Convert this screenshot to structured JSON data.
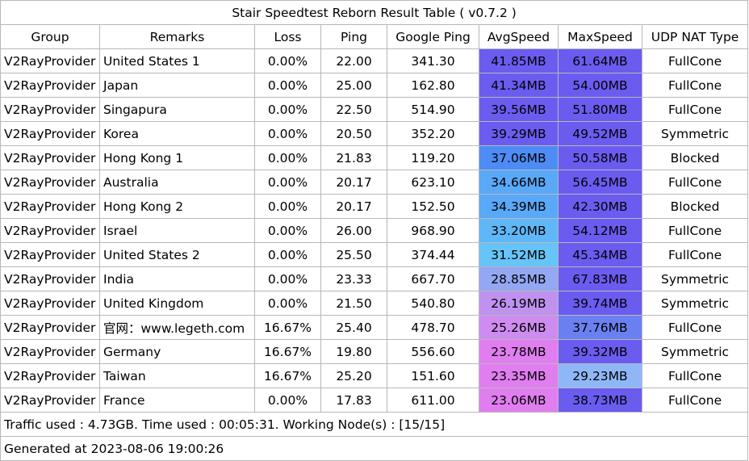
{
  "title": "Stair Speedtest Reborn Result Table ( v0.7.2 )",
  "headers": [
    "Group",
    "Remarks",
    "Loss",
    "Ping",
    "Google Ping",
    "AvgSpeed",
    "MaxSpeed",
    "UDP NAT Type"
  ],
  "rows": [
    {
      "group": "V2RayProvider",
      "remarks": "United States 1",
      "loss": "0.00%",
      "ping": "22.00",
      "gping": "341.30",
      "avg": "41.85MB",
      "max": "61.64MB",
      "nat": "FullCone",
      "avg_color": "#6b5cf0",
      "max_color": "#6b5cf0"
    },
    {
      "group": "V2RayProvider",
      "remarks": "Japan",
      "loss": "0.00%",
      "ping": "25.00",
      "gping": "162.80",
      "avg": "41.34MB",
      "max": "54.00MB",
      "nat": "FullCone",
      "avg_color": "#6b5cf0",
      "max_color": "#6b5cf0"
    },
    {
      "group": "V2RayProvider",
      "remarks": "Singapura",
      "loss": "0.00%",
      "ping": "22.50",
      "gping": "514.90",
      "avg": "39.56MB",
      "max": "51.80MB",
      "nat": "FullCone",
      "avg_color": "#6b5cf0",
      "max_color": "#6b5cf0"
    },
    {
      "group": "V2RayProvider",
      "remarks": "Korea",
      "loss": "0.00%",
      "ping": "20.50",
      "gping": "352.20",
      "avg": "39.29MB",
      "max": "49.52MB",
      "nat": "Symmetric",
      "avg_color": "#6b5cf0",
      "max_color": "#6b5cf0"
    },
    {
      "group": "V2RayProvider",
      "remarks": "Hong Kong 1",
      "loss": "0.00%",
      "ping": "21.83",
      "gping": "119.20",
      "avg": "37.06MB",
      "max": "50.58MB",
      "nat": "Blocked",
      "avg_color": "#4e8cf5",
      "max_color": "#6b5cf0"
    },
    {
      "group": "V2RayProvider",
      "remarks": "Australia",
      "loss": "0.00%",
      "ping": "20.17",
      "gping": "623.10",
      "avg": "34.66MB",
      "max": "56.45MB",
      "nat": "FullCone",
      "avg_color": "#5aa8f8",
      "max_color": "#6b5cf0"
    },
    {
      "group": "V2RayProvider",
      "remarks": "Hong Kong 2",
      "loss": "0.00%",
      "ping": "20.17",
      "gping": "152.50",
      "avg": "34.39MB",
      "max": "42.30MB",
      "nat": "Blocked",
      "avg_color": "#5aa8f8",
      "max_color": "#6b5cf0"
    },
    {
      "group": "V2RayProvider",
      "remarks": "Israel",
      "loss": "0.00%",
      "ping": "26.00",
      "gping": "968.90",
      "avg": "33.20MB",
      "max": "54.12MB",
      "nat": "FullCone",
      "avg_color": "#60b7f8",
      "max_color": "#6b5cf0"
    },
    {
      "group": "V2RayProvider",
      "remarks": "United States 2",
      "loss": "0.00%",
      "ping": "25.50",
      "gping": "374.44",
      "avg": "31.52MB",
      "max": "45.34MB",
      "nat": "FullCone",
      "avg_color": "#66c4f8",
      "max_color": "#6b5cf0"
    },
    {
      "group": "V2RayProvider",
      "remarks": "India",
      "loss": "0.00%",
      "ping": "23.33",
      "gping": "667.70",
      "avg": "28.85MB",
      "max": "67.83MB",
      "nat": "Symmetric",
      "avg_color": "#93a7f2",
      "max_color": "#6b5cf0"
    },
    {
      "group": "V2RayProvider",
      "remarks": "United Kingdom",
      "loss": "0.00%",
      "ping": "21.50",
      "gping": "540.80",
      "avg": "26.19MB",
      "max": "39.74MB",
      "nat": "Symmetric",
      "avg_color": "#bf92f0",
      "max_color": "#6b5cf0"
    },
    {
      "group": "V2RayProvider",
      "remarks": "官网：www.legeth.com",
      "loss": "16.67%",
      "ping": "25.40",
      "gping": "478.70",
      "avg": "25.26MB",
      "max": "37.76MB",
      "nat": "FullCone",
      "avg_color": "#cf8cf0",
      "max_color": "#6b80f0"
    },
    {
      "group": "V2RayProvider",
      "remarks": "Germany",
      "loss": "16.67%",
      "ping": "19.80",
      "gping": "556.60",
      "avg": "23.78MB",
      "max": "39.32MB",
      "nat": "Symmetric",
      "avg_color": "#e07ef0",
      "max_color": "#6b5cf0"
    },
    {
      "group": "V2RayProvider",
      "remarks": "Taiwan",
      "loss": "16.67%",
      "ping": "25.20",
      "gping": "151.60",
      "avg": "23.35MB",
      "max": "29.23MB",
      "nat": "FullCone",
      "avg_color": "#e07ef0",
      "max_color": "#8fb7f8"
    },
    {
      "group": "V2RayProvider",
      "remarks": "France",
      "loss": "0.00%",
      "ping": "17.83",
      "gping": "611.00",
      "avg": "23.06MB",
      "max": "38.73MB",
      "nat": "FullCone",
      "avg_color": "#e07ef0",
      "max_color": "#6b5cf0"
    }
  ],
  "footer": {
    "traffic": "Traffic used : 4.73GB. Time used : 00:05:31. Working Node(s) : [15/15]",
    "generated": "Generated at 2023-08-06 19:00:26"
  }
}
